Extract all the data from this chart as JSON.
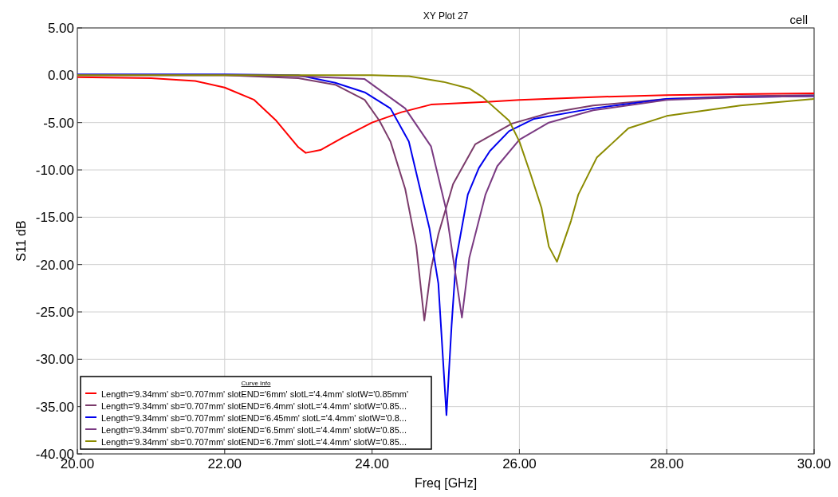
{
  "chart_data": {
    "type": "line",
    "title": "XY Plot 27",
    "xlabel": "Freq [GHz]",
    "ylabel": "S11 dB",
    "annotations": [
      "cell"
    ],
    "legend_title": "Curve Info",
    "legend": "bottom left",
    "grid": true,
    "line_style": "solid",
    "marker": "none",
    "xlim": [
      20,
      30
    ],
    "xticks": [
      {
        "value": 20,
        "label": "20.00"
      },
      {
        "value": 22,
        "label": "22.00"
      },
      {
        "value": 24,
        "label": "24.00"
      },
      {
        "value": 26,
        "label": "26.00"
      },
      {
        "value": 28,
        "label": "28.00"
      },
      {
        "value": 30,
        "label": "30.00"
      }
    ],
    "ylim": [
      -40,
      5
    ],
    "yticks": [
      {
        "value": 5,
        "label": "5.00"
      },
      {
        "value": 0,
        "label": "0.00"
      },
      {
        "value": -5,
        "label": "-5.00"
      },
      {
        "value": -10,
        "label": "-10.00"
      },
      {
        "value": -15,
        "label": "-15.00"
      },
      {
        "value": -20,
        "label": "-20.00"
      },
      {
        "value": -25,
        "label": "-25.00"
      },
      {
        "value": -30,
        "label": "-30.00"
      },
      {
        "value": -35,
        "label": "-35.00"
      },
      {
        "value": -40,
        "label": "-40.00"
      }
    ],
    "series": [
      {
        "name": "Length='9.34mm' sb='0.707mm' slotEND='6mm' slotL='4.4mm' slotW='0.85mm'",
        "color": "#ff0000",
        "x": [
          20,
          21,
          21.6,
          22,
          22.4,
          22.7,
          23,
          23.1,
          23.3,
          23.6,
          24,
          24.4,
          24.8,
          25.6,
          26,
          27,
          28,
          29,
          30
        ],
        "values": [
          -0.2,
          -0.3,
          -0.6,
          -1.3,
          -2.6,
          -4.8,
          -7.6,
          -8.2,
          -7.9,
          -6.6,
          -5,
          -3.9,
          -3.1,
          -2.8,
          -2.6,
          -2.3,
          -2.1,
          -2,
          -1.9
        ]
      },
      {
        "name": "Length='9.34mm' sb='0.707mm' slotEND='6.4mm' slotL='4.4mm' slotW='0.85...",
        "color": "#7b3b6b",
        "x": [
          20,
          22,
          23,
          23.5,
          23.9,
          24.1,
          24.25,
          24.45,
          24.6,
          24.71,
          24.8,
          24.9,
          25.1,
          25.4,
          25.9,
          26.4,
          27,
          28,
          29,
          30
        ],
        "values": [
          0,
          0,
          -0.3,
          -1,
          -2.6,
          -4.8,
          -7,
          -12,
          -18,
          -25.9,
          -20.5,
          -16.8,
          -11.5,
          -7.3,
          -5.1,
          -4,
          -3.2,
          -2.5,
          -2.2,
          -2.1
        ]
      },
      {
        "name": "Length='9.34mm' sb='0.707mm' slotEND='6.45mm' slotL='4.4mm' slotW='0.8...",
        "color": "#0000ee",
        "x": [
          20,
          22,
          23,
          23.5,
          23.9,
          24.25,
          24.5,
          24.78,
          24.9,
          25.01,
          25.08,
          25.14,
          25.3,
          25.45,
          25.6,
          25.86,
          26.2,
          27,
          28,
          29,
          30
        ],
        "values": [
          0.1,
          0.1,
          0,
          -0.8,
          -1.8,
          -3.5,
          -7,
          -16.2,
          -22,
          -35.9,
          -26.4,
          -19.5,
          -12.6,
          -9.8,
          -8,
          -5.9,
          -4.6,
          -3.5,
          -2.5,
          -2.3,
          -2.2
        ]
      },
      {
        "name": "Length='9.34mm' sb='0.707mm' slotEND='6.5mm' slotL='4.4mm' slotW='0.85...",
        "color": "#7a3a82",
        "x": [
          20,
          22,
          23,
          23.9,
          24.45,
          24.8,
          25,
          25.22,
          25.32,
          25.54,
          25.7,
          26,
          26.4,
          27,
          28,
          29,
          30
        ],
        "values": [
          0,
          0,
          -0.1,
          -0.4,
          -3.5,
          -7.5,
          -14,
          -25.6,
          -19.3,
          -12.6,
          -9.6,
          -6.8,
          -5,
          -3.7,
          -2.6,
          -2.3,
          -2.2
        ]
      },
      {
        "name": "Length='9.34mm' sb='0.707mm' slotEND='6.7mm' slotL='4.4mm' slotW='0.85...",
        "color": "#8b8b00",
        "x": [
          20,
          22,
          24,
          24.5,
          24.97,
          25.32,
          25.5,
          25.86,
          26,
          26.15,
          26.3,
          26.4,
          26.51,
          26.7,
          26.8,
          27.05,
          27.48,
          28,
          29,
          30
        ],
        "values": [
          0,
          0,
          0,
          -0.1,
          -0.7,
          -1.4,
          -2.3,
          -4.8,
          -7,
          -10.4,
          -14,
          -18.1,
          -19.7,
          -15.4,
          -12.6,
          -8.7,
          -5.6,
          -4.3,
          -3.2,
          -2.5
        ]
      }
    ]
  }
}
